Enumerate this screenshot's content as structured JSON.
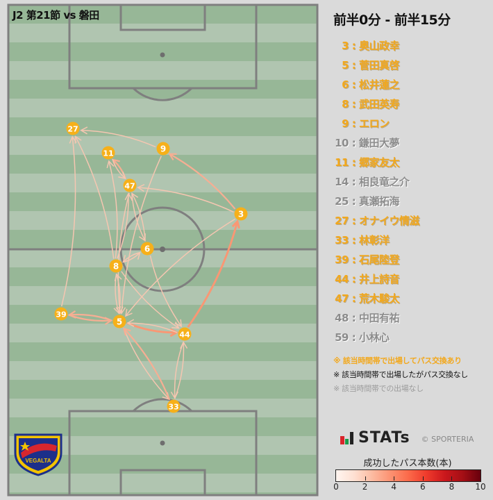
{
  "match_title": "J2 第21節 vs 磐田",
  "period": "前半0分 - 前半15分",
  "colors": {
    "active": "#f2a81d",
    "inactive": "#8c8c8c",
    "pitch_dark": "#97b797",
    "pitch_light": "#b0c5b0",
    "line": "#7f7f7f",
    "player": "#f6b01a"
  },
  "players_list": [
    {
      "num": "3",
      "name": "奥山政幸",
      "status": "on"
    },
    {
      "num": "5",
      "name": "菅田真啓",
      "status": "on"
    },
    {
      "num": "6",
      "name": "松井蓮之",
      "status": "on"
    },
    {
      "num": "8",
      "name": "武田英寿",
      "status": "on"
    },
    {
      "num": "9",
      "name": "エロン",
      "status": "on"
    },
    {
      "num": "10",
      "name": "鎌田大夢",
      "status": "off"
    },
    {
      "num": "11",
      "name": "郷家友太",
      "status": "on"
    },
    {
      "num": "14",
      "name": "相良竜之介",
      "status": "off"
    },
    {
      "num": "25",
      "name": "真瀬拓海",
      "status": "off"
    },
    {
      "num": "27",
      "name": "オナイウ情滋",
      "status": "on"
    },
    {
      "num": "33",
      "name": "林彰洋",
      "status": "on"
    },
    {
      "num": "39",
      "name": "石尾陸登",
      "status": "on"
    },
    {
      "num": "44",
      "name": "井上詩音",
      "status": "on"
    },
    {
      "num": "47",
      "name": "荒木駿太",
      "status": "on"
    },
    {
      "num": "48",
      "name": "中田有祐",
      "status": "off"
    },
    {
      "num": "59",
      "name": "小林心",
      "status": "off"
    }
  ],
  "notes": {
    "active": "※ 該当時間帯で出場してパス交換あり",
    "no_pass": "※ 該当時間帯で出場したがパス交換なし",
    "absent": "※ 該当時間帯での出場なし"
  },
  "brand": {
    "logo": "STATs",
    "copyright": "© SPORTERIA"
  },
  "club_logo_text": "VEGALTA",
  "colorbar": {
    "title": "成功したパス本数(本)",
    "min": 0,
    "max": 10,
    "ticks": [
      "0",
      "2",
      "4",
      "6",
      "8",
      "10"
    ]
  },
  "passes": [
    {
      "from": "9",
      "to": "27",
      "count": 1
    },
    {
      "from": "3",
      "to": "9",
      "count": 2
    },
    {
      "from": "3",
      "to": "47",
      "count": 1
    },
    {
      "from": "3",
      "to": "5",
      "count": 1
    },
    {
      "from": "44",
      "to": "3",
      "count": 3
    },
    {
      "from": "39",
      "to": "27",
      "count": 1
    },
    {
      "from": "8",
      "to": "27",
      "count": 1
    },
    {
      "from": "47",
      "to": "11",
      "count": 2
    },
    {
      "from": "11",
      "to": "47",
      "count": 1
    },
    {
      "from": "8",
      "to": "11",
      "count": 1
    },
    {
      "from": "8",
      "to": "47",
      "count": 1
    },
    {
      "from": "47",
      "to": "6",
      "count": 1
    },
    {
      "from": "6",
      "to": "47",
      "count": 1
    },
    {
      "from": "8",
      "to": "6",
      "count": 1
    },
    {
      "from": "6",
      "to": "8",
      "count": 1
    },
    {
      "from": "5",
      "to": "8",
      "count": 1
    },
    {
      "from": "8",
      "to": "5",
      "count": 1
    },
    {
      "from": "47",
      "to": "5",
      "count": 1
    },
    {
      "from": "9",
      "to": "5",
      "count": 1
    },
    {
      "from": "6",
      "to": "44",
      "count": 1
    },
    {
      "from": "8",
      "to": "44",
      "count": 1
    },
    {
      "from": "5",
      "to": "44",
      "count": 3
    },
    {
      "from": "44",
      "to": "5",
      "count": 1
    },
    {
      "from": "5",
      "to": "39",
      "count": 2
    },
    {
      "from": "39",
      "to": "5",
      "count": 2
    },
    {
      "from": "5",
      "to": "33",
      "count": 1
    },
    {
      "from": "33",
      "to": "5",
      "count": 2
    },
    {
      "from": "33",
      "to": "44",
      "count": 1
    },
    {
      "from": "44",
      "to": "33",
      "count": 1
    }
  ]
}
